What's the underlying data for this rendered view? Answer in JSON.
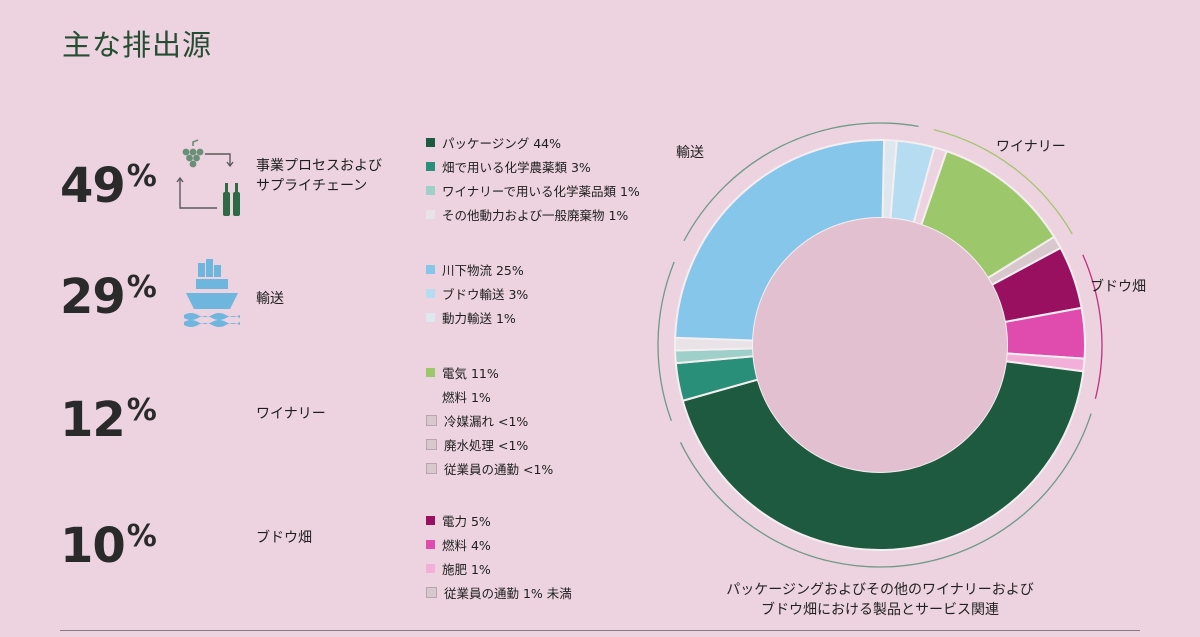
{
  "title": "主な排出源",
  "groups": [
    {
      "pct": "49",
      "sign": "%",
      "label_lines": [
        "事業プロセスおよび",
        "サプライチェーン"
      ],
      "icon": "grapes-to-bottle-icon",
      "items": [
        {
          "label": "パッケージング 44%",
          "color": "#1e5a40"
        },
        {
          "label": "畑で用いる化学農薬類 3%",
          "color": "#2a8f78"
        },
        {
          "label": "ワイナリーで用いる化学薬品類 1%",
          "color": "#9fcfc9"
        },
        {
          "label": "その他動力および一般廃棄物 1%",
          "color": "#e9e2e6"
        }
      ]
    },
    {
      "pct": "29",
      "sign": "%",
      "label_lines": [
        "輸送"
      ],
      "icon": "cargo-ship-icon",
      "items": [
        {
          "label": "川下物流 25%",
          "color": "#86c6ea"
        },
        {
          "label": "ブドウ輸送 3%",
          "color": "#b6dcf2"
        },
        {
          "label": "動力輸送 1%",
          "color": "#dfe7ee"
        }
      ]
    },
    {
      "pct": "12",
      "sign": "%",
      "label_lines": [
        "ワイナリー"
      ],
      "icon": "",
      "items": [
        {
          "label": "電気 11%",
          "color": "#9cc76a"
        },
        {
          "label": "燃料 1%",
          "color": "#ecd3df"
        },
        {
          "label": "冷媒漏れ <1%",
          "color": "#d8c8cd"
        },
        {
          "label": "廃水処理 <1%",
          "color": "#d8c8cd"
        },
        {
          "label": "従業員の通勤 <1%",
          "color": "#d8c8cd"
        }
      ]
    },
    {
      "pct": "10",
      "sign": "%",
      "label_lines": [
        "ブドウ畑"
      ],
      "icon": "",
      "items": [
        {
          "label": "電力 5%",
          "color": "#9a1060"
        },
        {
          "label": "燃料 4%",
          "color": "#df4cad"
        },
        {
          "label": "施肥 1%",
          "color": "#f2b0d8"
        },
        {
          "label": "従業員の通勤 1% 未満",
          "color": "#d8c8cd"
        }
      ]
    }
  ],
  "chart_data": {
    "type": "pie",
    "style": "donut",
    "start": "12 o'clock, clockwise",
    "segments": [
      {
        "name": "動力輸送",
        "value": 1,
        "color": "#dfe7ee"
      },
      {
        "name": "ブドウ輸送",
        "value": 3,
        "color": "#b6dcf2"
      },
      {
        "name": "燃料",
        "value": 1,
        "color": "#ecd3df"
      },
      {
        "name": "電気",
        "value": 11,
        "color": "#9cc76a"
      },
      {
        "name": "冷媒漏れ・廃水処理・従業員の通勤",
        "value": 1,
        "color": "#d8c8cd"
      },
      {
        "name": "電力",
        "value": 5,
        "color": "#9a1060"
      },
      {
        "name": "燃料",
        "value": 4,
        "color": "#df4cad"
      },
      {
        "name": "施肥",
        "value": 1,
        "color": "#f2b0d8"
      },
      {
        "name": "パッケージング",
        "value": 44,
        "color": "#1e5a40"
      },
      {
        "name": "畑で用いる化学農薬類",
        "value": 3,
        "color": "#2a8f78"
      },
      {
        "name": "ワイナリーで用いる化学薬品類",
        "value": 1,
        "color": "#9fcfc9"
      },
      {
        "name": "その他動力および一般廃棄物",
        "value": 1,
        "color": "#e9e2e6"
      },
      {
        "name": "川下物流",
        "value": 25,
        "color": "#86c6ea"
      }
    ],
    "labels": {
      "transport": "輸送",
      "winery": "ワイナリー",
      "vineyard": "ブドウ畑"
    },
    "caption_lines": [
      "パッケージングおよびその他のワイナリーおよび",
      "ブドウ畑における製品とサービス関連"
    ]
  }
}
